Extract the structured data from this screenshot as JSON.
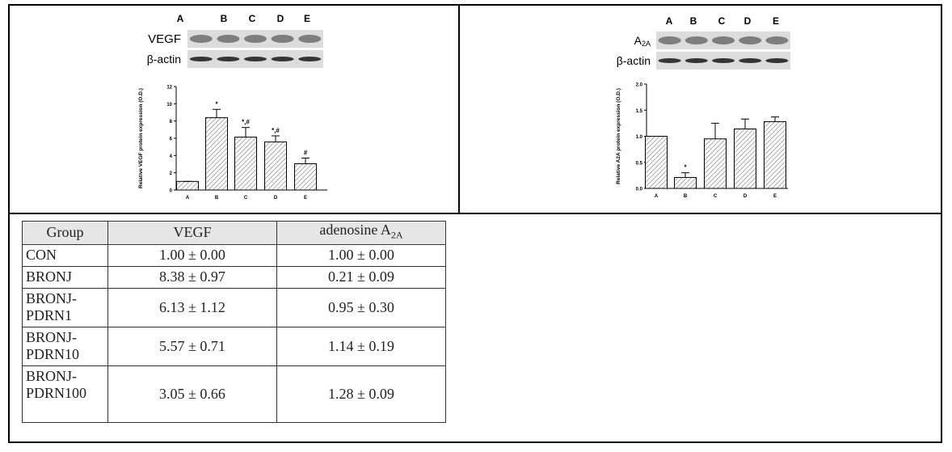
{
  "chart_data": [
    {
      "type": "bar",
      "blot": {
        "lanes": [
          "A",
          "B",
          "C",
          "D",
          "E"
        ],
        "rows": [
          {
            "text": "VEGF"
          },
          {
            "text": "β-actin"
          }
        ]
      },
      "y_label": "Relative VEGF protein expression (O.D.)",
      "categories": [
        "A",
        "B",
        "C",
        "D",
        "E"
      ],
      "values": [
        1.0,
        8.38,
        6.13,
        5.57,
        3.05
      ],
      "errors": [
        0.0,
        0.97,
        1.12,
        0.71,
        0.66
      ],
      "annotations": [
        null,
        "*",
        "*,#",
        "*,#",
        "#"
      ],
      "ylim": [
        0,
        12
      ],
      "yticks": [
        0,
        2,
        4,
        6,
        8,
        10,
        12
      ]
    },
    {
      "type": "bar",
      "blot": {
        "lanes": [
          "A",
          "B",
          "C",
          "D",
          "E"
        ],
        "rows": [
          {
            "text": "A",
            "sub": "2A"
          },
          {
            "text": "β-actin"
          }
        ]
      },
      "y_label": "Relative A2A protein expression (O.D.)",
      "categories": [
        "A",
        "B",
        "C",
        "D",
        "E"
      ],
      "values": [
        1.0,
        0.21,
        0.95,
        1.14,
        1.28
      ],
      "errors": [
        0.0,
        0.09,
        0.3,
        0.19,
        0.09
      ],
      "annotations": [
        null,
        "*",
        null,
        null,
        null
      ],
      "ylim": [
        0,
        2
      ],
      "yticks": [
        {
          "value": 0,
          "label": "0.0"
        },
        {
          "value": 0.5,
          "label": "0.5"
        },
        {
          "value": 1,
          "label": "1.0"
        },
        {
          "value": 1.5,
          "label": "1.5"
        },
        {
          "value": 2,
          "label": "2.0"
        }
      ]
    }
  ],
  "table": {
    "header": [
      {
        "text": "Group"
      },
      {
        "text": "VEGF"
      },
      {
        "text": "adenosine A",
        "sub": "2A"
      }
    ],
    "rows": [
      [
        "CON",
        "1.00 ± 0.00",
        "1.00 ± 0.00"
      ],
      [
        "BRONJ",
        "8.38 ± 0.97",
        "0.21 ± 0.09"
      ],
      [
        "BRONJ-PDRN1",
        "6.13 ± 1.12",
        "0.95 ± 0.30"
      ],
      [
        "BRONJ-PDRN10",
        "5.57 ± 0.71",
        "1.14 ± 0.19"
      ],
      [
        "BRONJ-PDRN100",
        "3.05 ± 0.66",
        "1.28 ± 0.09"
      ]
    ]
  }
}
